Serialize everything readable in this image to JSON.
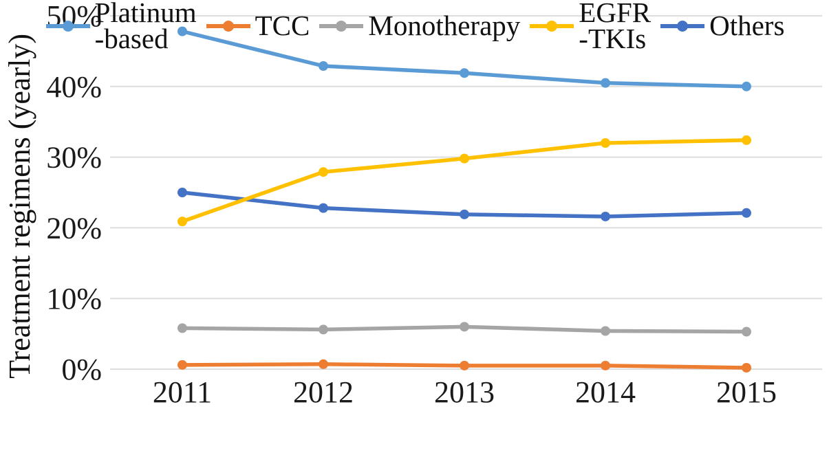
{
  "chart_data": {
    "type": "line",
    "title": "",
    "xlabel": "",
    "ylabel": "Treatment regimens (yearly)",
    "categories": [
      "2011",
      "2012",
      "2013",
      "2014",
      "2015"
    ],
    "y_ticks": [
      0,
      10,
      20,
      30,
      40,
      50
    ],
    "y_tick_suffix": "%",
    "ylim": [
      0,
      50
    ],
    "grid": "horizontal",
    "gridline_color": "#DDDDDD",
    "text_color": "#1a1a1a",
    "legend_position": "bottom",
    "series": [
      {
        "name": "Platinum-based",
        "legend_lines": [
          "Platinum",
          "-based"
        ],
        "color": "#5B9BD5",
        "values": [
          47.8,
          42.9,
          41.9,
          40.5,
          40.0
        ]
      },
      {
        "name": "TCC",
        "legend_lines": [
          "TCC"
        ],
        "color": "#ED7D31",
        "values": [
          0.6,
          0.7,
          0.5,
          0.5,
          0.2
        ]
      },
      {
        "name": "Monotherapy",
        "legend_lines": [
          "Monotherapy"
        ],
        "color": "#A5A5A5",
        "values": [
          5.8,
          5.6,
          6.0,
          5.4,
          5.3
        ]
      },
      {
        "name": "EGFR-TKIs",
        "legend_lines": [
          "EGFR",
          "-TKIs"
        ],
        "color": "#FFC000",
        "values": [
          20.9,
          27.9,
          29.8,
          32.0,
          32.4
        ]
      },
      {
        "name": "Others",
        "legend_lines": [
          "Others"
        ],
        "color": "#4472C4",
        "values": [
          25.0,
          22.8,
          21.9,
          21.6,
          22.1
        ]
      }
    ]
  }
}
